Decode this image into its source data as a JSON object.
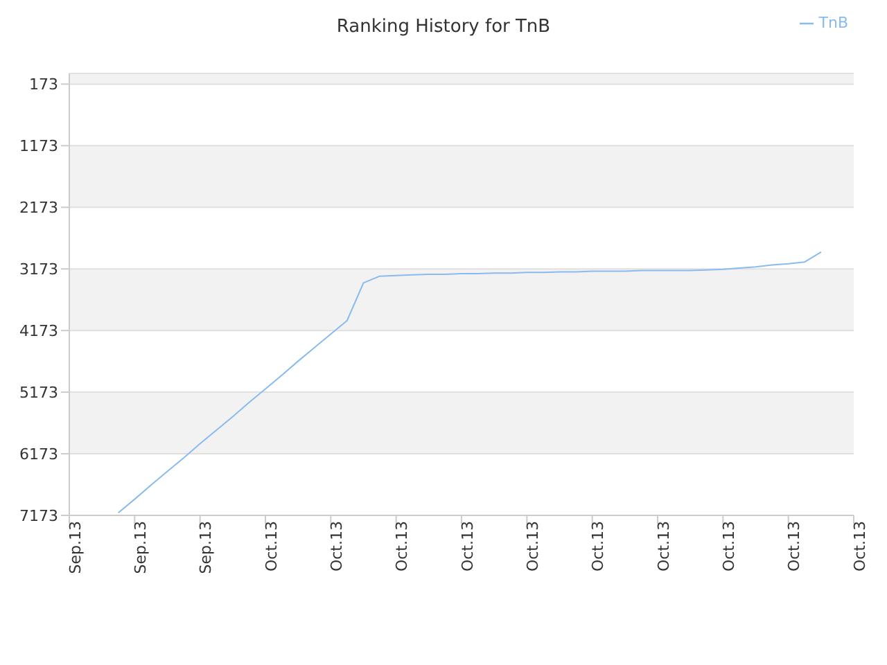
{
  "chart_data": {
    "type": "line",
    "title": "Ranking History for TnB",
    "categories": [
      "Sep.13",
      null,
      null,
      null,
      "Sep.13",
      null,
      null,
      null,
      "Sep.13",
      null,
      null,
      null,
      "Oct.13",
      null,
      null,
      null,
      "Oct.13",
      null,
      null,
      null,
      "Oct.13",
      null,
      null,
      null,
      "Oct.13",
      null,
      null,
      null,
      "Oct.13",
      null,
      null,
      null,
      "Oct.13",
      null,
      null,
      null,
      "Oct.13",
      null,
      null,
      null,
      "Oct.13",
      null,
      null,
      null,
      "Oct.13",
      null,
      null,
      null,
      "Oct.13"
    ],
    "series": [
      {
        "name": "TnB",
        "color": "#88bbee",
        "values": [
          null,
          null,
          null,
          7130,
          6910,
          6680,
          6460,
          6240,
          6010,
          5790,
          5570,
          5340,
          5120,
          4900,
          4670,
          4450,
          4230,
          4010,
          3400,
          3290,
          3280,
          3270,
          3260,
          3260,
          3250,
          3250,
          3240,
          3240,
          3230,
          3230,
          3220,
          3220,
          3210,
          3210,
          3210,
          3200,
          3200,
          3200,
          3200,
          3190,
          3180,
          3160,
          3140,
          3110,
          3090,
          3060,
          2900,
          null,
          null
        ]
      }
    ],
    "ylim": [
      7173,
      0
    ],
    "yticks": [
      173,
      1173,
      2173,
      3173,
      4173,
      5173,
      6173,
      7173
    ],
    "grid": "y",
    "legend": "top right"
  }
}
